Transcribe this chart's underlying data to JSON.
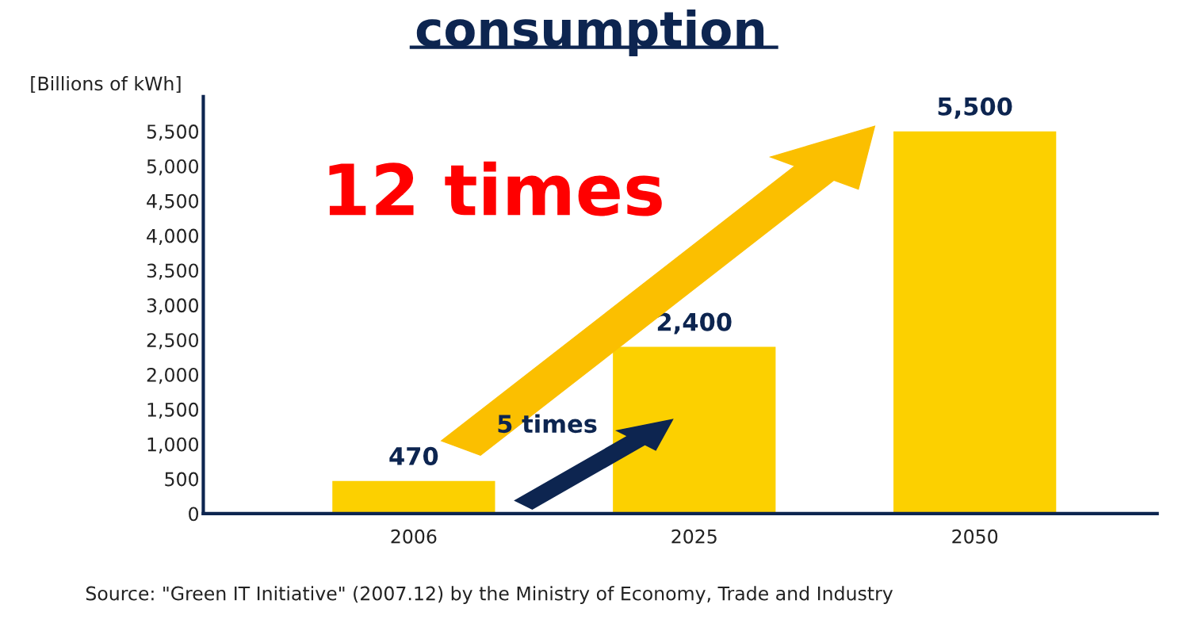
{
  "chart_data": {
    "type": "bar",
    "title": "consumption",
    "ylabel": "[Billions of kWh]",
    "categories": [
      "2006",
      "2025",
      "2050"
    ],
    "values": [
      470,
      2400,
      5500
    ],
    "color": "#fcd000",
    "ylim": [
      0,
      6000
    ],
    "yticks": [
      0,
      {
        "value": 500,
        "label": "500"
      },
      {
        "value": 1000,
        "label": "1,000"
      },
      {
        "value": 1500,
        "label": "1,500"
      },
      {
        "value": 2000,
        "label": "2,000"
      },
      {
        "value": 2500,
        "label": "2,500"
      },
      {
        "value": 3000,
        "label": "3,000"
      },
      {
        "value": 3500,
        "label": "3,500"
      },
      {
        "value": 4000,
        "label": "4,000"
      },
      {
        "value": 4500,
        "label": "4,500"
      },
      {
        "value": 5000,
        "label": "5,000"
      },
      {
        "value": 5500,
        "label": "5,500"
      }
    ],
    "value_labels": [
      "470",
      "2,400",
      "5,500"
    ],
    "grid": false,
    "legend": false,
    "annotations": [
      "12 times",
      "5 times",
      "Source: \"Green IT Initiative\" (2007.12) by the Ministry of Economy, Trade and Industry"
    ]
  }
}
